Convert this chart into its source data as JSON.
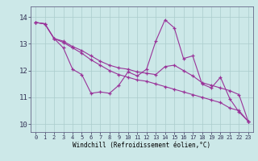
{
  "xlabel": "Windchill (Refroidissement éolien,°C)",
  "bg_color": "#cce8e8",
  "line_color": "#993399",
  "grid_color": "#aacccc",
  "xlim": [
    -0.5,
    23.5
  ],
  "ylim": [
    9.7,
    14.4
  ],
  "xticks": [
    0,
    1,
    2,
    3,
    4,
    5,
    6,
    7,
    8,
    9,
    10,
    11,
    12,
    13,
    14,
    15,
    16,
    17,
    18,
    19,
    20,
    21,
    22,
    23
  ],
  "yticks": [
    10,
    11,
    12,
    13,
    14
  ],
  "series": [
    [
      13.8,
      13.75,
      13.2,
      12.85,
      12.05,
      11.85,
      11.15,
      11.2,
      11.15,
      11.45,
      11.95,
      11.8,
      12.05,
      13.1,
      13.9,
      13.6,
      12.45,
      12.55,
      11.5,
      11.35,
      11.75,
      10.95,
      10.45,
      10.1
    ],
    [
      13.8,
      13.75,
      13.2,
      13.1,
      12.9,
      12.75,
      12.55,
      12.35,
      12.2,
      12.1,
      12.05,
      11.95,
      11.9,
      11.85,
      12.15,
      12.2,
      12.0,
      11.8,
      11.55,
      11.45,
      11.35,
      11.25,
      11.1,
      10.1
    ],
    [
      13.8,
      13.75,
      13.2,
      13.05,
      12.85,
      12.65,
      12.4,
      12.2,
      12.0,
      11.85,
      11.75,
      11.65,
      11.6,
      11.5,
      11.4,
      11.3,
      11.2,
      11.1,
      11.0,
      10.9,
      10.8,
      10.6,
      10.5,
      10.1
    ]
  ]
}
